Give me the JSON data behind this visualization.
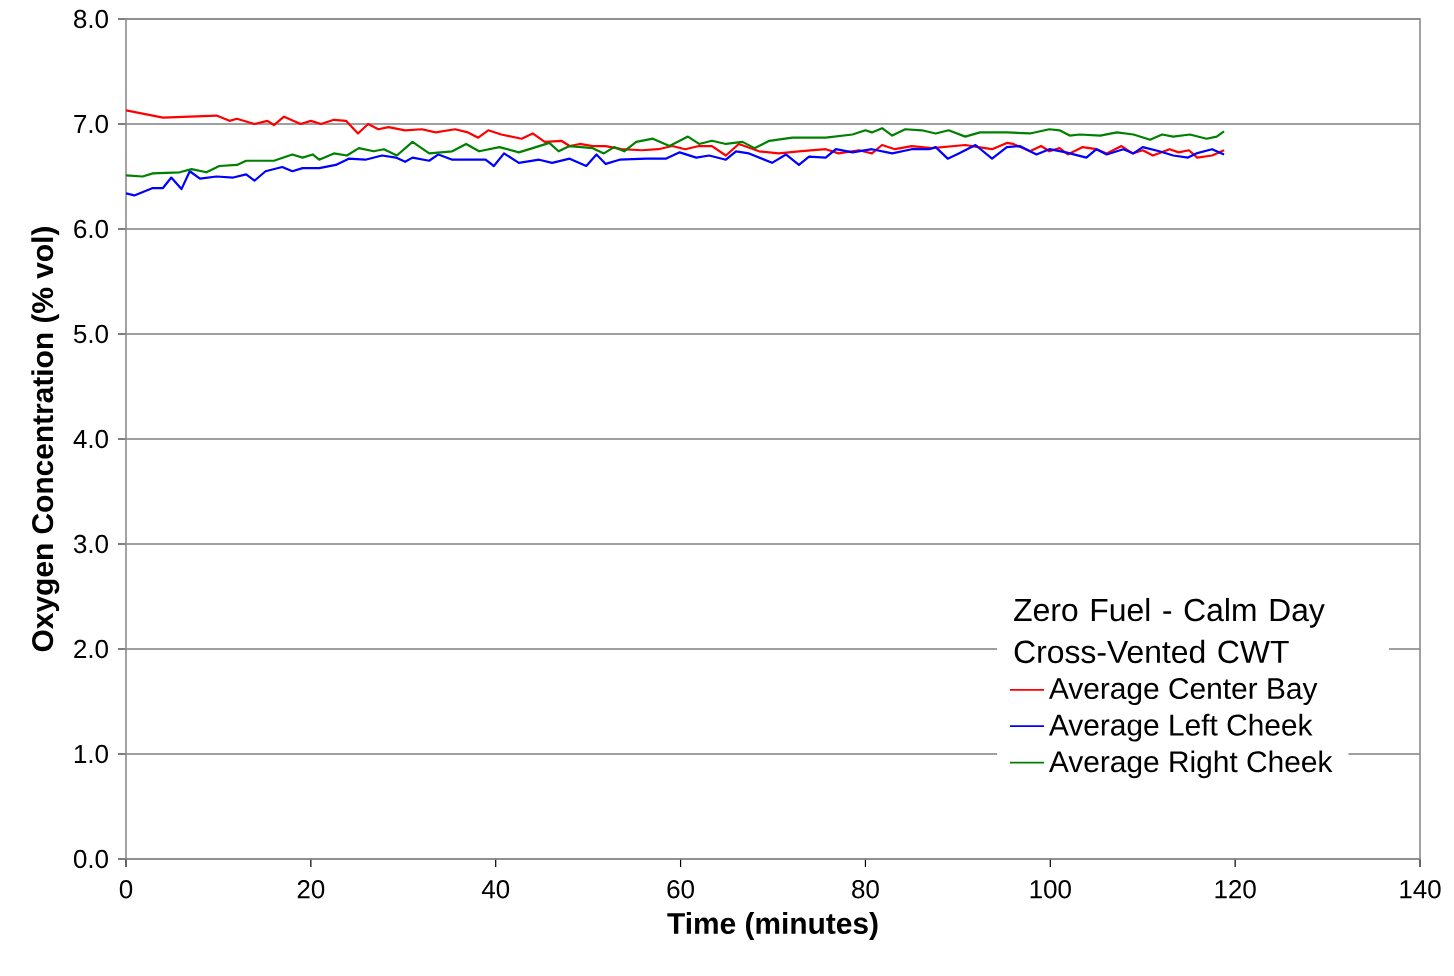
{
  "chart_data": {
    "type": "line",
    "xlabel": "Time (minutes)",
    "ylabel": "Oxygen Concentration (% vol)",
    "legend_title": "Zero Fuel - Calm Day Cross-Vented CWT",
    "xlim": [
      0,
      140
    ],
    "xticks": [
      0,
      20,
      40,
      60,
      80,
      100,
      120,
      140
    ],
    "ylim": [
      0,
      8
    ],
    "yticks": [
      {
        "value": 0,
        "label": "0.0"
      },
      {
        "value": 1,
        "label": "1.0"
      },
      {
        "value": 2,
        "label": "2.0"
      },
      {
        "value": 3,
        "label": "3.0"
      },
      {
        "value": 4,
        "label": "4.0"
      },
      {
        "value": 5,
        "label": "5.0"
      },
      {
        "value": 6,
        "label": "6.0"
      },
      {
        "value": 7,
        "label": "7.0"
      },
      {
        "value": 8,
        "label": "8.0"
      }
    ],
    "grid": "y",
    "legend": "bottom right",
    "marker": "none",
    "line_style": "solid",
    "series": [
      {
        "name": "Average Center Bay",
        "color": "#ff0000",
        "x": [
          0,
          4,
          9.8,
          11.2,
          12,
          13.9,
          15.3,
          16,
          17.1,
          18.9,
          20,
          21.1,
          22.5,
          23.8,
          25.1,
          26.2,
          27.3,
          28.4,
          30.2,
          32,
          33.5,
          35.6,
          37,
          38.1,
          39.2,
          40.6,
          42.8,
          44,
          45.3,
          47.1,
          48,
          49.1,
          50.5,
          51.9,
          53.6,
          55.8,
          57.6,
          59.1,
          60.5,
          62,
          63.4,
          64.9,
          66.3,
          68.5,
          70.6,
          72.8,
          75.7,
          77.1,
          79.3,
          80.7,
          81.8,
          83.2,
          85,
          87.2,
          90.8,
          92.2,
          93.7,
          95.3,
          96,
          97.8,
          99,
          99.9,
          101,
          101.9,
          103.5,
          105,
          106.1,
          107.7,
          108.9,
          110,
          111.1,
          112.9,
          113.9,
          115,
          115.9,
          117.5,
          118.8
        ],
        "values": [
          7.13,
          7.06,
          7.08,
          7.03,
          7.05,
          7.0,
          7.03,
          6.99,
          7.07,
          7.0,
          7.03,
          7.0,
          7.04,
          7.03,
          6.91,
          7.0,
          6.95,
          6.97,
          6.94,
          6.95,
          6.92,
          6.95,
          6.92,
          6.87,
          6.94,
          6.9,
          6.86,
          6.91,
          6.83,
          6.84,
          6.79,
          6.81,
          6.79,
          6.79,
          6.76,
          6.75,
          6.76,
          6.79,
          6.76,
          6.79,
          6.79,
          6.7,
          6.81,
          6.74,
          6.72,
          6.74,
          6.76,
          6.72,
          6.75,
          6.72,
          6.8,
          6.76,
          6.79,
          6.77,
          6.8,
          6.78,
          6.76,
          6.82,
          6.81,
          6.74,
          6.79,
          6.74,
          6.77,
          6.71,
          6.78,
          6.76,
          6.72,
          6.79,
          6.72,
          6.75,
          6.7,
          6.76,
          6.73,
          6.75,
          6.68,
          6.7,
          6.75
        ]
      },
      {
        "name": "Average Left Cheek",
        "color": "#0000ff",
        "x": [
          0,
          0.9,
          2.9,
          4,
          4.9,
          6,
          6.9,
          8,
          9.8,
          11.6,
          13,
          13.9,
          15.1,
          16.9,
          18,
          19.1,
          20.9,
          22.7,
          24.1,
          25.9,
          27.7,
          29.2,
          30.2,
          31,
          32.8,
          33.8,
          35.3,
          38.9,
          39.8,
          40.9,
          42.5,
          44.7,
          46.1,
          48,
          49.8,
          50.9,
          51.9,
          53.4,
          56.3,
          58.4,
          59.9,
          61.7,
          63.1,
          64.9,
          66,
          67.4,
          69.9,
          71.4,
          72.8,
          73.9,
          75.7,
          76.8,
          78.6,
          80.7,
          82.9,
          85,
          86.9,
          87.6,
          88.9,
          90.1,
          91.9,
          93.7,
          95.3,
          96.7,
          98.5,
          99.9,
          101.7,
          103.9,
          105,
          106.1,
          107.9,
          109,
          110,
          111.8,
          113.3,
          114.9,
          115.8,
          117.5,
          118.8
        ],
        "values": [
          6.34,
          6.32,
          6.39,
          6.39,
          6.49,
          6.38,
          6.55,
          6.48,
          6.5,
          6.49,
          6.52,
          6.46,
          6.55,
          6.59,
          6.55,
          6.58,
          6.58,
          6.61,
          6.67,
          6.66,
          6.7,
          6.68,
          6.64,
          6.68,
          6.65,
          6.71,
          6.66,
          6.66,
          6.6,
          6.72,
          6.63,
          6.66,
          6.63,
          6.67,
          6.6,
          6.71,
          6.62,
          6.66,
          6.67,
          6.67,
          6.73,
          6.68,
          6.7,
          6.66,
          6.74,
          6.72,
          6.63,
          6.71,
          6.61,
          6.69,
          6.68,
          6.76,
          6.73,
          6.76,
          6.72,
          6.76,
          6.76,
          6.78,
          6.67,
          6.72,
          6.8,
          6.67,
          6.78,
          6.79,
          6.71,
          6.76,
          6.73,
          6.68,
          6.76,
          6.71,
          6.76,
          6.72,
          6.78,
          6.74,
          6.7,
          6.68,
          6.72,
          6.76,
          6.71
        ]
      },
      {
        "name": "Average Right Cheek",
        "color": "#008000",
        "x": [
          0,
          1.8,
          2.9,
          5.8,
          7.1,
          8.7,
          10.1,
          12,
          13,
          16,
          18,
          19.1,
          20.2,
          20.9,
          22.5,
          23.9,
          25.2,
          26.8,
          27.9,
          29.3,
          31,
          32.8,
          35.3,
          36.8,
          38.2,
          40.4,
          42.5,
          44,
          45.8,
          46.8,
          48,
          50.5,
          51.7,
          52.8,
          53.9,
          55.2,
          57,
          58.8,
          60.8,
          62,
          63.4,
          64.9,
          66.7,
          68,
          69.6,
          72.1,
          75.7,
          78.6,
          80,
          80.7,
          81.8,
          82.9,
          84.3,
          86.1,
          87.6,
          89,
          90.8,
          92.4,
          95.3,
          97.8,
          99.9,
          101,
          102.1,
          103.2,
          105.4,
          107.2,
          109,
          110.8,
          112.1,
          113.3,
          115.1,
          116.9,
          118,
          118.8
        ],
        "values": [
          6.51,
          6.5,
          6.53,
          6.54,
          6.57,
          6.54,
          6.6,
          6.61,
          6.65,
          6.65,
          6.71,
          6.68,
          6.71,
          6.66,
          6.72,
          6.7,
          6.77,
          6.74,
          6.76,
          6.7,
          6.83,
          6.72,
          6.74,
          6.81,
          6.74,
          6.78,
          6.73,
          6.77,
          6.82,
          6.74,
          6.79,
          6.77,
          6.72,
          6.78,
          6.74,
          6.83,
          6.86,
          6.79,
          6.88,
          6.81,
          6.84,
          6.81,
          6.83,
          6.77,
          6.84,
          6.87,
          6.87,
          6.9,
          6.94,
          6.92,
          6.96,
          6.89,
          6.95,
          6.94,
          6.91,
          6.94,
          6.88,
          6.92,
          6.92,
          6.91,
          6.95,
          6.94,
          6.89,
          6.9,
          6.89,
          6.92,
          6.9,
          6.85,
          6.9,
          6.88,
          6.9,
          6.86,
          6.88,
          6.93
        ]
      }
    ]
  }
}
